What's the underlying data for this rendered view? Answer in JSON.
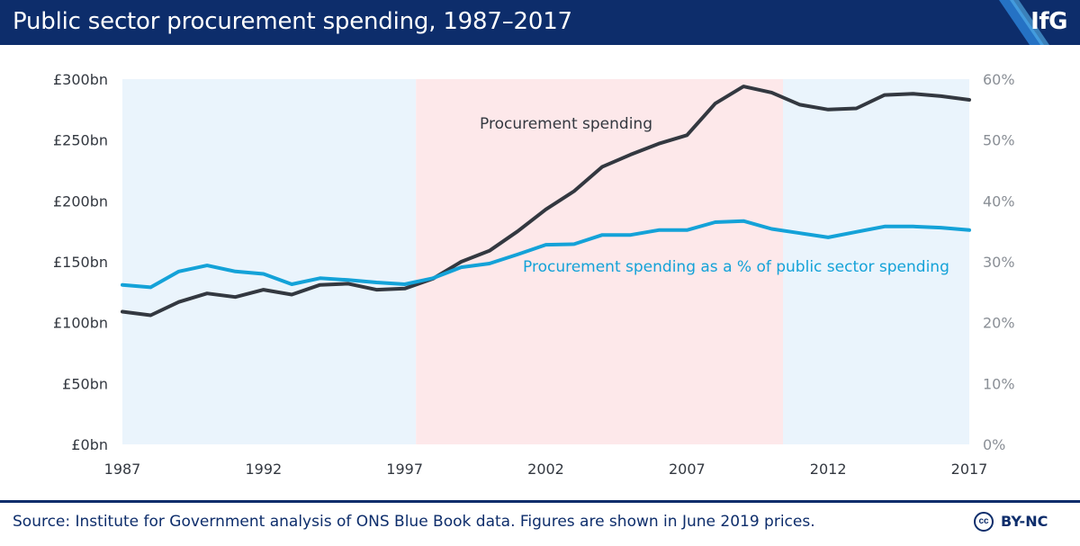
{
  "header": {
    "title": "Public sector procurement spending, 1987–2017",
    "logo_text": "IfG",
    "logo_color": "#0d2d6b"
  },
  "footer": {
    "source": "Source: Institute for Government analysis of ONS Blue Book data. Figures are shown in June 2019 prices.",
    "cc_glyph": "cc",
    "license": "BY-NC"
  },
  "chart_data": {
    "type": "line",
    "x": [
      1987,
      1988,
      1989,
      1990,
      1991,
      1992,
      1993,
      1994,
      1995,
      1996,
      1997,
      1998,
      1999,
      2000,
      2001,
      2002,
      2003,
      2004,
      2005,
      2006,
      2007,
      2008,
      2009,
      2010,
      2011,
      2012,
      2013,
      2014,
      2015,
      2016,
      2017
    ],
    "x_ticks": [
      "1987",
      "1992",
      "1997",
      "2002",
      "2007",
      "2012",
      "2017"
    ],
    "xlim": [
      1987,
      2017
    ],
    "y_left": {
      "ticks": [
        "£0bn",
        "£50bn",
        "£100bn",
        "£150bn",
        "£200bn",
        "£250bn",
        "£300bn"
      ],
      "range": [
        0,
        300
      ]
    },
    "y_right": {
      "ticks": [
        "0%",
        "10%",
        "20%",
        "30%",
        "40%",
        "50%",
        "60%"
      ],
      "range": [
        0,
        60
      ]
    },
    "series": [
      {
        "name": "Procurement spending",
        "axis": "left",
        "color": "#333840",
        "values": [
          109,
          106,
          117,
          124,
          121,
          127,
          123,
          131,
          132,
          127,
          128,
          136,
          150,
          159,
          175,
          193,
          208,
          228,
          238,
          247,
          254,
          280,
          294,
          289,
          279,
          275,
          276,
          287,
          288,
          286,
          283
        ]
      },
      {
        "name": "Procurement spending as a % of public sector spending",
        "axis": "right",
        "color": "#14a2d8",
        "values": [
          26.2,
          25.8,
          28.4,
          29.4,
          28.4,
          28,
          26.3,
          27.3,
          27,
          26.6,
          26.3,
          27.3,
          29.1,
          29.7,
          31.2,
          32.8,
          32.9,
          34.4,
          34.4,
          35.2,
          35.2,
          36.5,
          36.7,
          35.4,
          34.7,
          34,
          34.9,
          35.8,
          35.8,
          35.6,
          35.2
        ]
      }
    ],
    "shaded_periods": [
      {
        "start": 1987,
        "end": 1997.4,
        "color": "#eaf4fc"
      },
      {
        "start": 1997.4,
        "end": 2010.4,
        "color": "#fde8ea"
      },
      {
        "start": 2010.4,
        "end": 2017,
        "color": "#eaf4fc"
      }
    ],
    "annotations": [
      {
        "text": "Procurement spending",
        "series": 0,
        "color": "#333840"
      },
      {
        "text": "Procurement spending as a % of public sector spending",
        "series": 1,
        "color": "#14a2d8"
      }
    ],
    "grid": false,
    "legend": "none"
  }
}
